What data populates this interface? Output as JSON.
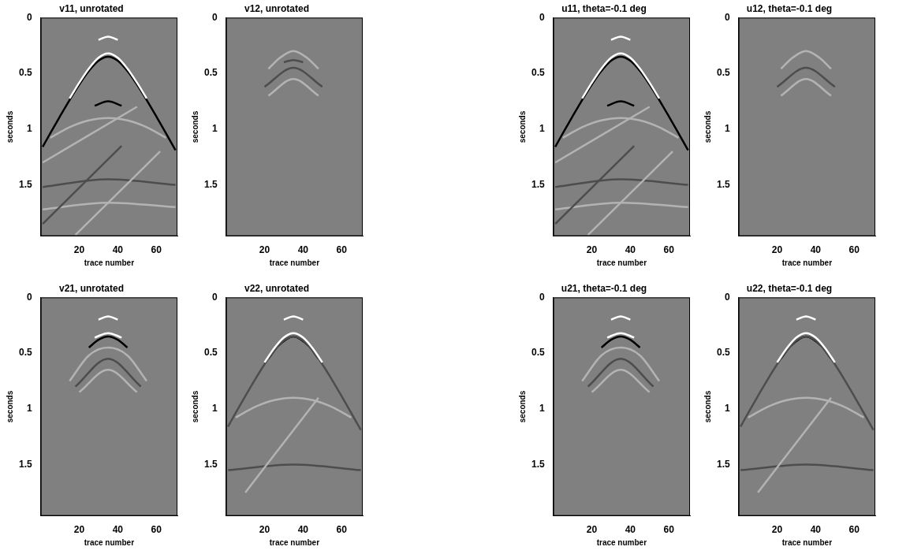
{
  "chart_data": [
    {
      "type": "line",
      "title": "v11, unrotated",
      "x_label": "trace number",
      "y_label": "seconds",
      "xlim": [
        0,
        71
      ],
      "xticks": [
        20,
        40,
        60
      ],
      "ylim": [
        0,
        1.96
      ],
      "yticks": [
        0,
        0.5,
        1,
        1.5
      ],
      "grid": false,
      "series": [
        {
          "color": "#ffffff",
          "x": [
            15,
            20,
            25,
            30,
            35,
            40,
            45,
            50,
            55
          ],
          "values": [
            0.724,
            0.583,
            0.456,
            0.359,
            0.32,
            0.359,
            0.456,
            0.583,
            0.724
          ]
        },
        {
          "color": "#000000",
          "x": [
            1,
            5,
            10,
            15,
            20,
            25,
            30,
            35,
            40,
            45,
            50,
            55,
            60,
            65,
            70
          ],
          "values": [
            1.159,
            1.036,
            0.885,
            0.738,
            0.6,
            0.478,
            0.386,
            0.35,
            0.386,
            0.478,
            0.6,
            0.738,
            0.885,
            1.036,
            1.19
          ]
        },
        {
          "color": "#b3b3b3",
          "x": [
            5,
            15,
            25,
            35,
            45,
            55,
            65
          ],
          "values": [
            1.078,
            0.983,
            0.922,
            0.9,
            0.922,
            0.983,
            1.078
          ]
        },
        {
          "color": "#000000",
          "x": [
            28,
            35,
            42
          ],
          "values": [
            0.79,
            0.75,
            0.79
          ]
        },
        {
          "color": "#ffffff",
          "x": [
            30,
            35,
            40
          ],
          "values": [
            0.2,
            0.17,
            0.2
          ]
        },
        {
          "color": "#b3b3b3",
          "x": [
            1,
            50
          ],
          "values": [
            1.3,
            0.8
          ]
        },
        {
          "color": "#4d4d4d",
          "x": [
            1,
            42
          ],
          "values": [
            1.85,
            1.15
          ]
        },
        {
          "color": "#b3b3b3",
          "x": [
            18,
            62
          ],
          "values": [
            1.95,
            1.2
          ]
        },
        {
          "color": "#4d4d4d",
          "x": [
            1,
            35,
            70
          ],
          "values": [
            1.52,
            1.45,
            1.5
          ]
        },
        {
          "color": "#b3b3b3",
          "x": [
            1,
            35,
            70
          ],
          "values": [
            1.72,
            1.66,
            1.7
          ]
        }
      ]
    },
    {
      "type": "line",
      "title": "v12, unrotated",
      "x_label": "trace number",
      "y_label": "seconds",
      "xlim": [
        0,
        71
      ],
      "xticks": [
        20,
        40,
        60
      ],
      "ylim": [
        0,
        1.96
      ],
      "yticks": [
        0,
        0.5,
        1,
        1.5
      ],
      "grid": false,
      "series": [
        {
          "color": "#b3b3b3",
          "x": [
            22,
            28,
            35,
            42,
            48
          ],
          "values": [
            0.46,
            0.36,
            0.3,
            0.36,
            0.46
          ]
        },
        {
          "color": "#4d4d4d",
          "x": [
            30,
            35,
            40
          ],
          "values": [
            0.4,
            0.38,
            0.4
          ]
        },
        {
          "color": "#4d4d4d",
          "x": [
            20,
            35,
            50
          ],
          "values": [
            0.62,
            0.45,
            0.62
          ]
        },
        {
          "color": "#b3b3b3",
          "x": [
            22,
            35,
            48
          ],
          "values": [
            0.7,
            0.55,
            0.7
          ]
        }
      ]
    },
    {
      "type": "line",
      "title": "u11, theta=-0.1 deg",
      "x_label": "trace number",
      "y_label": "seconds",
      "xlim": [
        0,
        71
      ],
      "xticks": [
        20,
        40,
        60
      ],
      "ylim": [
        0,
        1.96
      ],
      "yticks": [
        0,
        0.5,
        1,
        1.5
      ],
      "grid": false,
      "series": [
        {
          "color": "#ffffff",
          "x": [
            15,
            20,
            25,
            30,
            35,
            40,
            45,
            50,
            55
          ],
          "values": [
            0.724,
            0.583,
            0.456,
            0.359,
            0.32,
            0.359,
            0.456,
            0.583,
            0.724
          ]
        },
        {
          "color": "#000000",
          "x": [
            1,
            5,
            10,
            15,
            20,
            25,
            30,
            35,
            40,
            45,
            50,
            55,
            60,
            65,
            70
          ],
          "values": [
            1.159,
            1.036,
            0.885,
            0.738,
            0.6,
            0.478,
            0.386,
            0.35,
            0.386,
            0.478,
            0.6,
            0.738,
            0.885,
            1.036,
            1.19
          ]
        },
        {
          "color": "#b3b3b3",
          "x": [
            5,
            15,
            25,
            35,
            45,
            55,
            65
          ],
          "values": [
            1.078,
            0.983,
            0.922,
            0.9,
            0.922,
            0.983,
            1.078
          ]
        },
        {
          "color": "#000000",
          "x": [
            28,
            35,
            42
          ],
          "values": [
            0.79,
            0.75,
            0.79
          ]
        },
        {
          "color": "#ffffff",
          "x": [
            30,
            35,
            40
          ],
          "values": [
            0.2,
            0.17,
            0.2
          ]
        },
        {
          "color": "#b3b3b3",
          "x": [
            1,
            50
          ],
          "values": [
            1.3,
            0.8
          ]
        },
        {
          "color": "#4d4d4d",
          "x": [
            1,
            42
          ],
          "values": [
            1.85,
            1.15
          ]
        },
        {
          "color": "#b3b3b3",
          "x": [
            18,
            62
          ],
          "values": [
            1.95,
            1.2
          ]
        },
        {
          "color": "#4d4d4d",
          "x": [
            1,
            35,
            70
          ],
          "values": [
            1.52,
            1.45,
            1.5
          ]
        },
        {
          "color": "#b3b3b3",
          "x": [
            1,
            35,
            70
          ],
          "values": [
            1.72,
            1.66,
            1.7
          ]
        }
      ]
    },
    {
      "type": "line",
      "title": "u12, theta=-0.1 deg",
      "x_label": "trace number",
      "y_label": "seconds",
      "xlim": [
        0,
        71
      ],
      "xticks": [
        20,
        40,
        60
      ],
      "ylim": [
        0,
        1.96
      ],
      "yticks": [
        0,
        0.5,
        1,
        1.5
      ],
      "grid": false,
      "series": [
        {
          "color": "#b3b3b3",
          "x": [
            22,
            28,
            35,
            42,
            48
          ],
          "values": [
            0.46,
            0.36,
            0.3,
            0.36,
            0.46
          ]
        },
        {
          "color": "#4d4d4d",
          "x": [
            20,
            35,
            50
          ],
          "values": [
            0.62,
            0.45,
            0.62
          ]
        },
        {
          "color": "#b3b3b3",
          "x": [
            22,
            35,
            48
          ],
          "values": [
            0.7,
            0.55,
            0.7
          ]
        }
      ]
    },
    {
      "type": "line",
      "title": "v21, unrotated",
      "x_label": "trace number",
      "y_label": "seconds",
      "xlim": [
        0,
        71
      ],
      "xticks": [
        20,
        40,
        60
      ],
      "ylim": [
        0,
        1.96
      ],
      "yticks": [
        0,
        0.5,
        1,
        1.5
      ],
      "grid": false,
      "series": [
        {
          "color": "#ffffff",
          "x": [
            28,
            35,
            42
          ],
          "values": [
            0.36,
            0.32,
            0.36
          ]
        },
        {
          "color": "#000000",
          "x": [
            25,
            30,
            35,
            40,
            45
          ],
          "values": [
            0.45,
            0.38,
            0.35,
            0.38,
            0.45
          ]
        },
        {
          "color": "#ffffff",
          "x": [
            30,
            35,
            40
          ],
          "values": [
            0.2,
            0.17,
            0.2
          ]
        },
        {
          "color": "#b3b3b3",
          "x": [
            15,
            25,
            35,
            45,
            55
          ],
          "values": [
            0.75,
            0.52,
            0.45,
            0.52,
            0.75
          ]
        },
        {
          "color": "#4d4d4d",
          "x": [
            18,
            35,
            52
          ],
          "values": [
            0.8,
            0.55,
            0.8
          ]
        },
        {
          "color": "#b3b3b3",
          "x": [
            20,
            35,
            50
          ],
          "values": [
            0.85,
            0.65,
            0.85
          ]
        }
      ]
    },
    {
      "type": "line",
      "title": "v22, unrotated",
      "x_label": "trace number",
      "y_label": "seconds",
      "xlim": [
        0,
        71
      ],
      "xticks": [
        20,
        40,
        60
      ],
      "ylim": [
        0,
        1.96
      ],
      "yticks": [
        0,
        0.5,
        1,
        1.5
      ],
      "grid": false,
      "series": [
        {
          "color": "#ffffff",
          "x": [
            20,
            25,
            30,
            35,
            40,
            45,
            50
          ],
          "values": [
            0.583,
            0.456,
            0.359,
            0.32,
            0.359,
            0.456,
            0.583
          ]
        },
        {
          "color": "#4d4d4d",
          "x": [
            1,
            5,
            10,
            15,
            20,
            25,
            30,
            35,
            40,
            45,
            50,
            55,
            60,
            65,
            70
          ],
          "values": [
            1.159,
            1.036,
            0.885,
            0.738,
            0.6,
            0.478,
            0.386,
            0.35,
            0.386,
            0.478,
            0.6,
            0.738,
            0.885,
            1.036,
            1.19
          ]
        },
        {
          "color": "#000000",
          "x": [
            22,
            27,
            35,
            43,
            48
          ],
          "values": [
            0.549,
            0.436,
            0.35,
            0.436,
            0.549
          ]
        },
        {
          "color": "#ffffff",
          "x": [
            30,
            35,
            40
          ],
          "values": [
            0.2,
            0.17,
            0.2
          ]
        },
        {
          "color": "#b3b3b3",
          "x": [
            5,
            15,
            25,
            35,
            45,
            55,
            65
          ],
          "values": [
            1.078,
            0.983,
            0.922,
            0.9,
            0.922,
            0.983,
            1.078
          ]
        },
        {
          "color": "#b3b3b3",
          "x": [
            10,
            48
          ],
          "values": [
            1.75,
            0.9
          ]
        },
        {
          "color": "#4d4d4d",
          "x": [
            1,
            35,
            70
          ],
          "values": [
            1.55,
            1.5,
            1.55
          ]
        }
      ]
    },
    {
      "type": "line",
      "title": "u21, theta=-0.1 deg",
      "x_label": "trace number",
      "y_label": "seconds",
      "xlim": [
        0,
        71
      ],
      "xticks": [
        20,
        40,
        60
      ],
      "ylim": [
        0,
        1.96
      ],
      "yticks": [
        0,
        0.5,
        1,
        1.5
      ],
      "grid": false,
      "series": [
        {
          "color": "#ffffff",
          "x": [
            28,
            35,
            42
          ],
          "values": [
            0.36,
            0.32,
            0.36
          ]
        },
        {
          "color": "#000000",
          "x": [
            25,
            30,
            35,
            40,
            45
          ],
          "values": [
            0.45,
            0.38,
            0.35,
            0.38,
            0.45
          ]
        },
        {
          "color": "#ffffff",
          "x": [
            30,
            35,
            40
          ],
          "values": [
            0.2,
            0.17,
            0.2
          ]
        },
        {
          "color": "#b3b3b3",
          "x": [
            15,
            25,
            35,
            45,
            55
          ],
          "values": [
            0.75,
            0.52,
            0.45,
            0.52,
            0.75
          ]
        },
        {
          "color": "#4d4d4d",
          "x": [
            18,
            35,
            52
          ],
          "values": [
            0.8,
            0.55,
            0.8
          ]
        },
        {
          "color": "#b3b3b3",
          "x": [
            20,
            35,
            50
          ],
          "values": [
            0.85,
            0.65,
            0.85
          ]
        }
      ]
    },
    {
      "type": "line",
      "title": "u22, theta=-0.1 deg",
      "x_label": "trace number",
      "y_label": "seconds",
      "xlim": [
        0,
        71
      ],
      "xticks": [
        20,
        40,
        60
      ],
      "ylim": [
        0,
        1.96
      ],
      "yticks": [
        0,
        0.5,
        1,
        1.5
      ],
      "grid": false,
      "series": [
        {
          "color": "#ffffff",
          "x": [
            20,
            25,
            30,
            35,
            40,
            45,
            50
          ],
          "values": [
            0.583,
            0.456,
            0.359,
            0.32,
            0.359,
            0.456,
            0.583
          ]
        },
        {
          "color": "#4d4d4d",
          "x": [
            1,
            5,
            10,
            15,
            20,
            25,
            30,
            35,
            40,
            45,
            50,
            55,
            60,
            65,
            70
          ],
          "values": [
            1.159,
            1.036,
            0.885,
            0.738,
            0.6,
            0.478,
            0.386,
            0.35,
            0.386,
            0.478,
            0.6,
            0.738,
            0.885,
            1.036,
            1.19
          ]
        },
        {
          "color": "#000000",
          "x": [
            22,
            27,
            35,
            43,
            48
          ],
          "values": [
            0.549,
            0.436,
            0.35,
            0.436,
            0.549
          ]
        },
        {
          "color": "#ffffff",
          "x": [
            30,
            35,
            40
          ],
          "values": [
            0.2,
            0.17,
            0.2
          ]
        },
        {
          "color": "#b3b3b3",
          "x": [
            5,
            15,
            25,
            35,
            45,
            55,
            65
          ],
          "values": [
            1.078,
            0.983,
            0.922,
            0.9,
            0.922,
            0.983,
            1.078
          ]
        },
        {
          "color": "#b3b3b3",
          "x": [
            10,
            48
          ],
          "values": [
            1.75,
            0.9
          ]
        },
        {
          "color": "#4d4d4d",
          "x": [
            1,
            35,
            70
          ],
          "values": [
            1.55,
            1.5,
            1.55
          ]
        }
      ]
    }
  ]
}
